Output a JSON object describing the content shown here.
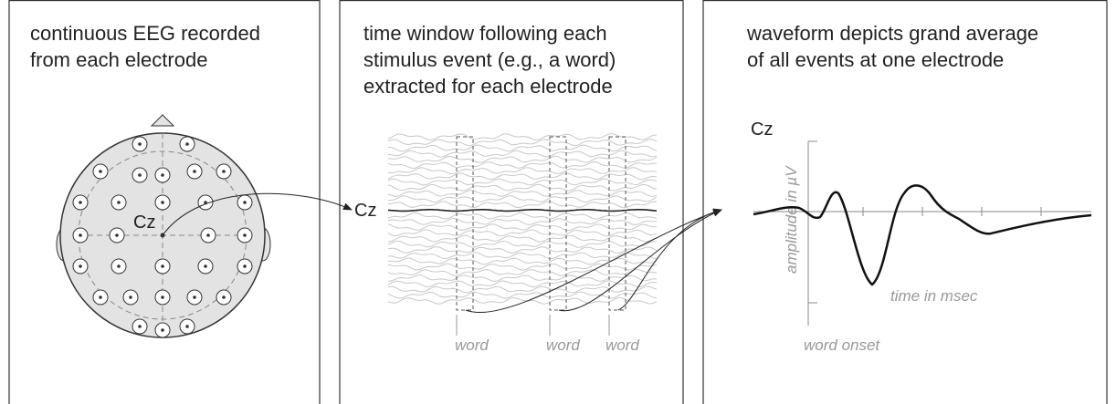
{
  "panels": [
    {
      "caption_lines": [
        "continuous EEG recorded",
        "from each electrode"
      ],
      "electrode_label": "Cz"
    },
    {
      "caption_lines": [
        "time window following each",
        "stimulus event (e.g., a word)",
        "extracted for each electrode"
      ],
      "channel_label": "Cz",
      "event_labels": [
        "word",
        "word",
        "word"
      ]
    },
    {
      "caption_lines": [
        "waveform depicts grand average",
        "of all events at one electrode"
      ],
      "channel_label": "Cz",
      "y_axis_label": "amplitude in µV",
      "x_axis_label": "time in msec",
      "onset_label": "word onset"
    }
  ]
}
